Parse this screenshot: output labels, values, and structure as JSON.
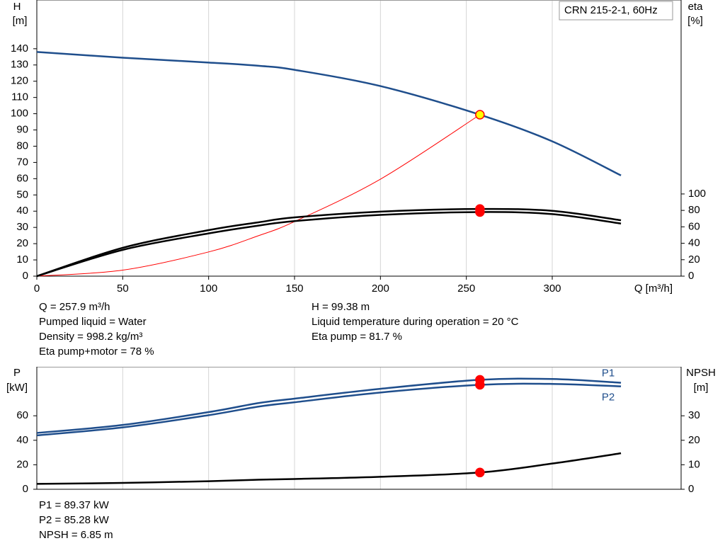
{
  "chart_data": [
    {
      "type": "line",
      "title": "CRN 215-2-1, 60Hz",
      "ylabel": [
        "H",
        "[m]"
      ],
      "y2label": [
        "eta",
        "[%]"
      ],
      "xlabel": "Q [m³/h]",
      "x": [
        0,
        50,
        100,
        129,
        150,
        200,
        257.9,
        300,
        340
      ],
      "xlim": [
        0,
        375
      ],
      "xticks": [
        0,
        50,
        100,
        150,
        200,
        250,
        300
      ],
      "ylim": [
        0,
        170
      ],
      "yticks": [
        0,
        10,
        20,
        30,
        40,
        50,
        60,
        70,
        80,
        90,
        100,
        110,
        120,
        130,
        140
      ],
      "y2lim": [
        0,
        336
      ],
      "y2ticks": [
        0,
        20,
        40,
        60,
        80,
        100
      ],
      "grid": true,
      "operating_point": {
        "x": 257.9
      },
      "series": [
        {
          "color": "#1f4e8c",
          "marker_color": "#ffff00",
          "values": [
            138,
            134.5,
            131.5,
            129.5,
            127,
            117,
            99.38,
            83,
            62
          ]
        },
        {
          "color": "#ff0000",
          "values": [
            0,
            3.7,
            14.9,
            24.9,
            33.6,
            59.7,
            99.38,
            null,
            null
          ]
        },
        {
          "color": "#000000",
          "marker_color": "#ff0000",
          "axis": "y2",
          "values": [
            0,
            34.5,
            56,
            65.5,
            71.5,
            78.5,
            81.7,
            79.5,
            68
          ]
        },
        {
          "color": "#000000",
          "marker_color": "#ff0000",
          "axis": "y2",
          "values": [
            0,
            32,
            52,
            61.5,
            67,
            74.5,
            78,
            75.5,
            64
          ]
        }
      ]
    },
    {
      "type": "line",
      "ylabel": [
        "P",
        "[kW]"
      ],
      "y2label": [
        "NPSH",
        "[m]"
      ],
      "x": [
        0,
        50,
        100,
        129,
        150,
        200,
        257.9,
        300,
        340
      ],
      "xlim": [
        0,
        375
      ],
      "ylim": [
        0,
        100
      ],
      "yticks": [
        0,
        20,
        40,
        60
      ],
      "y2lim": [
        0,
        50
      ],
      "y2ticks": [
        0,
        10,
        20,
        30
      ],
      "grid": true,
      "operating_point": {
        "x": 257.9
      },
      "series": [
        {
          "name": "P1",
          "color": "#1f4e8c",
          "marker_color": "#ff0000",
          "values": [
            46,
            52.5,
            63,
            70.4,
            74,
            82,
            89.37,
            90,
            87
          ]
        },
        {
          "name": "P2",
          "color": "#1f4e8c",
          "marker_color": "#ff0000",
          "values": [
            44,
            50.5,
            60.5,
            67.5,
            71,
            79,
            85.28,
            86,
            84
          ]
        },
        {
          "color": "#000000",
          "marker_color": "#ff0000",
          "axis": "y2",
          "values": [
            2.2,
            2.6,
            3.3,
            3.9,
            4.2,
            5.1,
            6.85,
            10.5,
            14.7
          ]
        }
      ]
    }
  ],
  "info": {
    "duty_left": [
      "Q = 257.9 m³/h",
      "Pumped liquid = Water",
      "Density = 998.2 kg/m³",
      "Eta pump+motor = 78 %"
    ],
    "duty_right": [
      "H = 99.38 m",
      "Liquid temperature during operation = 20 °C",
      "Eta pump = 81.7 %"
    ],
    "power": [
      "P1 = 89.37 kW",
      "P2 = 85.28 kW",
      "NPSH = 6.85 m"
    ]
  }
}
